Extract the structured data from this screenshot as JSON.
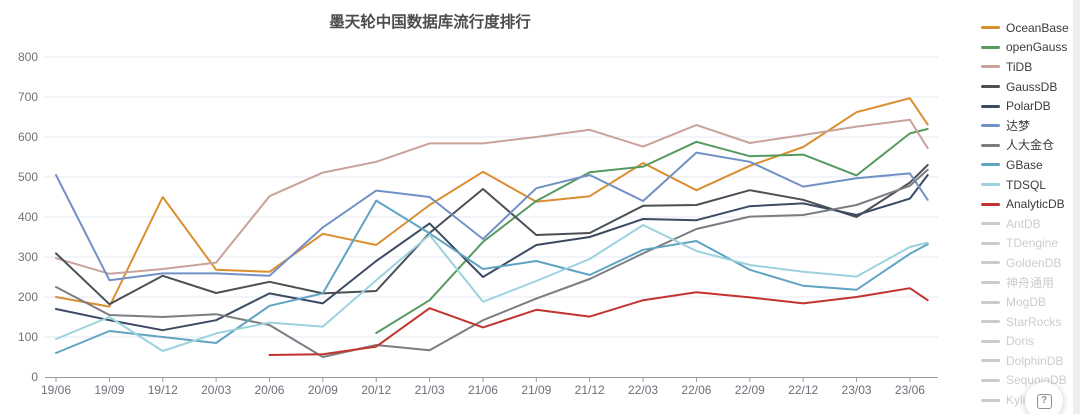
{
  "chart_data": {
    "type": "line",
    "title": "墨天轮中国数据库流行度排行",
    "x_tick_labels": [
      "19/06",
      "19/09",
      "19/12",
      "20/03",
      "20/06",
      "20/09",
      "20/12",
      "21/03",
      "21/06",
      "21/09",
      "21/12",
      "22/03",
      "22/06",
      "22/09",
      "22/12",
      "23/03",
      "23/06"
    ],
    "x_note": "data is quarterly estimates; each series has one extra unlabeled end point one month after 23/06",
    "ylim": [
      0,
      800
    ],
    "y_ticks": [
      0,
      100,
      200,
      300,
      400,
      500,
      600,
      700,
      800
    ],
    "grid": true,
    "legend_position": "right",
    "series": [
      {
        "name": "OceanBase",
        "color": "#db8e30",
        "values": [
          200,
          176,
          450,
          268,
          263,
          358,
          330,
          430,
          513,
          438,
          452,
          535,
          467,
          528,
          575,
          662,
          697,
          631
        ]
      },
      {
        "name": "openGauss",
        "color": "#569a60",
        "values": [
          null,
          null,
          null,
          null,
          null,
          null,
          110,
          192,
          338,
          440,
          512,
          526,
          588,
          552,
          556,
          504,
          609,
          620
        ]
      },
      {
        "name": "TiDB",
        "color": "#c9a29a",
        "values": [
          297,
          258,
          270,
          286,
          452,
          511,
          538,
          584,
          584,
          600,
          618,
          576,
          630,
          585,
          605,
          626,
          643,
          572
        ]
      },
      {
        "name": "GaussDB",
        "color": "#4a5056",
        "values": [
          309,
          182,
          253,
          210,
          238,
          209,
          215,
          360,
          470,
          355,
          360,
          428,
          430,
          467,
          443,
          400,
          486,
          530
        ]
      },
      {
        "name": "PolarDB",
        "color": "#3c4b61",
        "values": [
          170,
          142,
          117,
          142,
          209,
          184,
          290,
          384,
          250,
          330,
          350,
          395,
          392,
          427,
          434,
          405,
          446,
          505
        ]
      },
      {
        "name": "达梦",
        "color": "#7191c6",
        "values": [
          505,
          242,
          259,
          259,
          253,
          374,
          466,
          450,
          345,
          472,
          505,
          440,
          561,
          538,
          476,
          497,
          509,
          443
        ]
      },
      {
        "name": "人大金仓",
        "color": "#7b7d80",
        "values": [
          225,
          155,
          150,
          157,
          130,
          50,
          80,
          67,
          142,
          196,
          245,
          309,
          370,
          401,
          405,
          430,
          478,
          518
        ]
      },
      {
        "name": "GBase",
        "color": "#61a3c3",
        "values": [
          60,
          115,
          100,
          85,
          178,
          209,
          441,
          359,
          270,
          290,
          255,
          318,
          340,
          268,
          228,
          218,
          308,
          332
        ]
      },
      {
        "name": "TDSQL",
        "color": "#9cd2de",
        "values": [
          95,
          150,
          65,
          109,
          136,
          126,
          242,
          355,
          188,
          240,
          295,
          380,
          315,
          280,
          263,
          251,
          325,
          336
        ]
      },
      {
        "name": "AnalyticDB",
        "color": "#c3342e",
        "values": [
          null,
          null,
          null,
          null,
          55,
          57,
          76,
          172,
          124,
          168,
          151,
          192,
          212,
          199,
          184,
          200,
          222,
          192
        ]
      }
    ],
    "inactive_legend": [
      "AntDB",
      "TDengine",
      "GoldenDB",
      "神舟通用",
      "MogDB",
      "StarRocks",
      "Doris",
      "DolphinDB",
      "SequoiaDB",
      "Kylig"
    ]
  },
  "legend": {
    "active_text_color": "#3b3b3b",
    "inactive_color": "#cccccc"
  },
  "colors": {
    "grid_line": "#e4e9f3",
    "axis_line": "#9a9a9a",
    "tick_label": "#6e7079",
    "title": "#4d4d4d"
  },
  "help_button": {
    "label": "?"
  }
}
